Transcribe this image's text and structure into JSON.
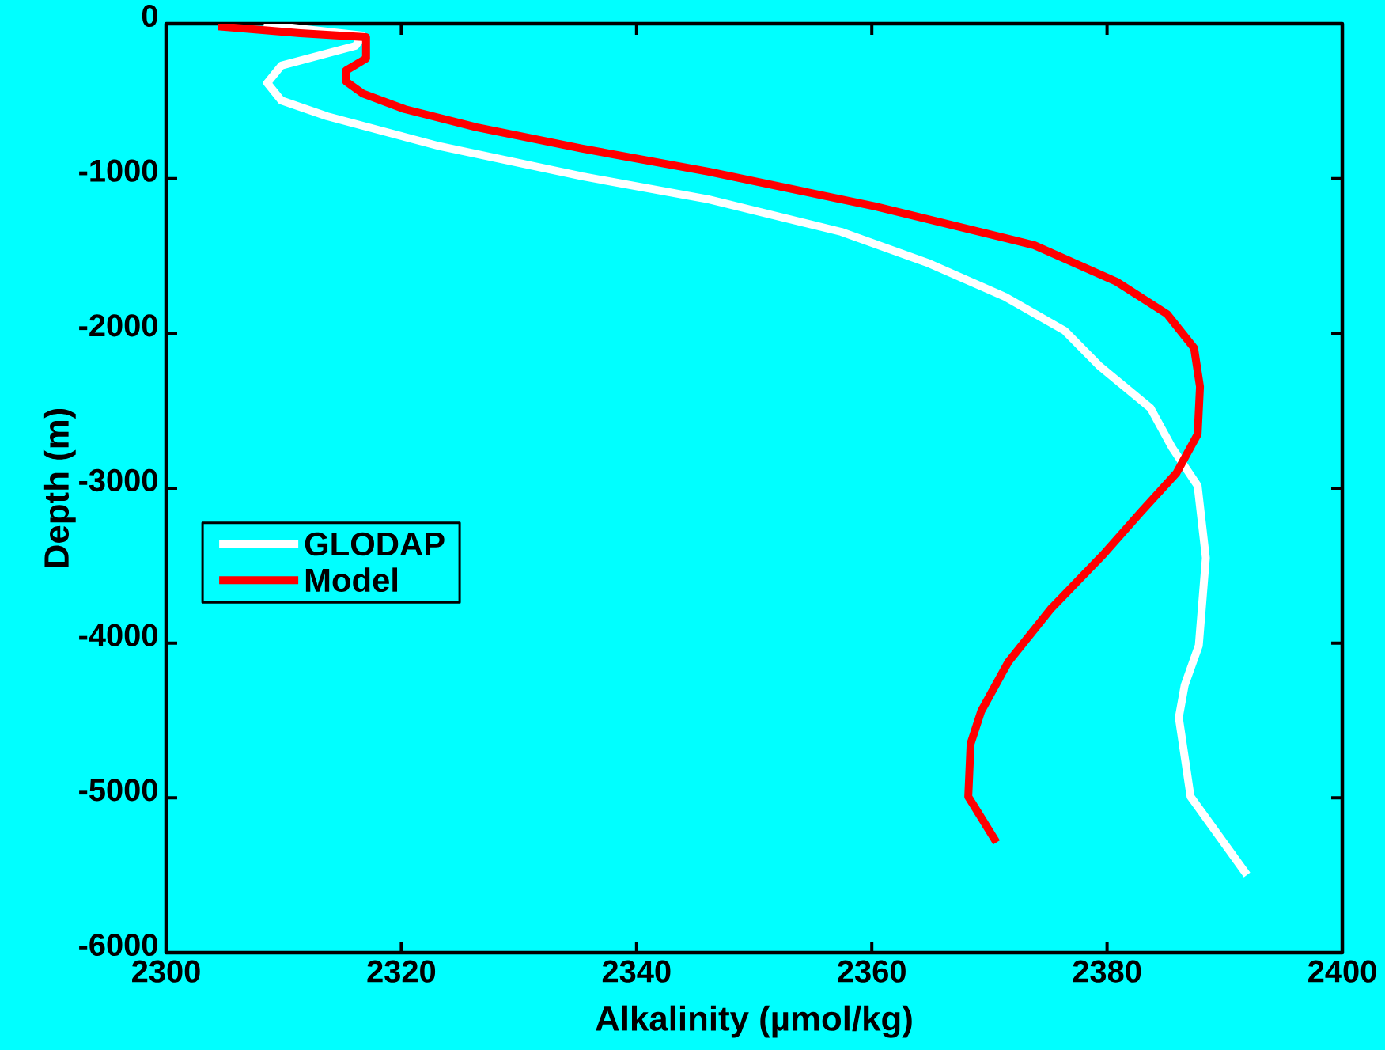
{
  "chart_data": {
    "type": "line",
    "xlabel": "Alkalinity (µmol/kg)",
    "ylabel": "Depth (m)",
    "xlim": [
      2300,
      2400
    ],
    "xticks": [
      2300,
      2320,
      2340,
      2360,
      2380,
      2400
    ],
    "ylim": [
      -6000,
      0
    ],
    "yticks": [
      -6000,
      -5000,
      -4000,
      -3000,
      -2000,
      -1000,
      0
    ],
    "grid": false,
    "legend": "left",
    "marker": "none",
    "line_style": "solid",
    "series": [
      {
        "name": "GLODAP",
        "color": "#ffffff",
        "x": [
          2308.3,
          2316.7,
          2316.1,
          2309.8,
          2308.6,
          2309.8,
          2313.7,
          2323.3,
          2335.4,
          2346.1,
          2357.4,
          2364.7,
          2371.3,
          2376.4,
          2379.3,
          2383.7,
          2385.5,
          2387.7,
          2388.4,
          2387.8,
          2386.6,
          2386.1,
          2387.1,
          2391.9
        ],
        "values": [
          -5,
          -77,
          -143,
          -270,
          -383,
          -496,
          -598,
          -792,
          -986,
          -1134,
          -1344,
          -1543,
          -1763,
          -1983,
          -2207,
          -2483,
          -2734,
          -2984,
          -3450,
          -4016,
          -4272,
          -4481,
          -4992,
          -5498
        ]
      },
      {
        "name": "Model",
        "color": "#ff0000",
        "x": [
          2304.4,
          2311.4,
          2317.0,
          2317.0,
          2315.3,
          2315.3,
          2316.7,
          2320.3,
          2326.4,
          2335.4,
          2346.1,
          2360.3,
          2373.8,
          2380.8,
          2385.1,
          2387.4,
          2387.9,
          2387.7,
          2385.9,
          2382.9,
          2379.7,
          2375.2,
          2371.6,
          2369.3,
          2368.4,
          2368.2,
          2370.6
        ],
        "values": [
          -17,
          -61,
          -87,
          -225,
          -302,
          -373,
          -450,
          -552,
          -669,
          -807,
          -955,
          -1180,
          -1430,
          -1666,
          -1875,
          -2095,
          -2345,
          -2652,
          -2902,
          -3152,
          -3427,
          -3781,
          -4123,
          -4440,
          -4650,
          -4992,
          -5288
        ]
      }
    ]
  }
}
